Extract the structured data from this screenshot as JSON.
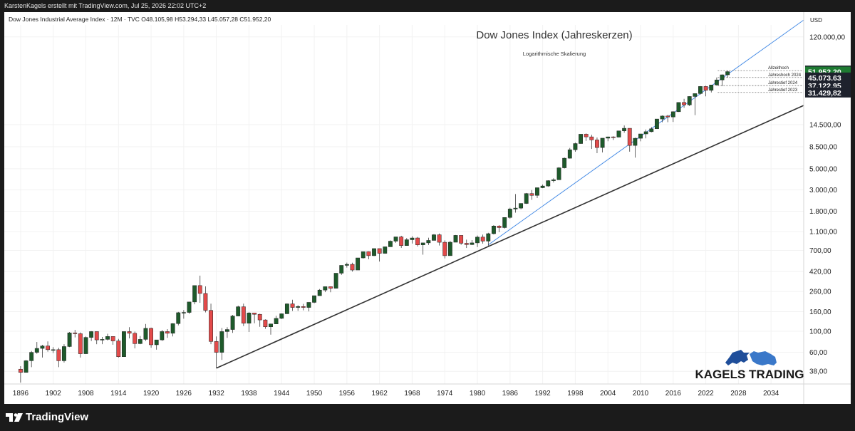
{
  "header": {
    "credit": "KarstenKagels erstellt mit TradingView.com, Jul 25, 2026 22:02 UTC+2"
  },
  "footer": {
    "brand": "TradingView"
  },
  "legend": {
    "symbol_line": "Dow Jones Industrial Average Index · 12M · TVC  O48.105,98  H53.294,33  L45.057,28  C51.952,20"
  },
  "watermark": {
    "brand": "KAGELS TRADING"
  },
  "colors": {
    "up": "#1e5a2b",
    "down": "#e34a4a",
    "blue_line": "#4a8ee6",
    "black_line": "#333333",
    "price_tag_dark": "#1e222d",
    "price_tag_green": "#1e7a32"
  },
  "chart_data": {
    "type": "candlestick",
    "title": "Dow Jones Index (Jahreskerzen)",
    "subtitle": "Logarithmische Skalierung",
    "currency": "USD",
    "scale": "log",
    "ylim": [
      28,
      160000
    ],
    "xlim": [
      1893,
      2040
    ],
    "x_ticks": [
      "1896",
      "1902",
      "1908",
      "1914",
      "1920",
      "1926",
      "1932",
      "1938",
      "1944",
      "1950",
      "1956",
      "1962",
      "1968",
      "1974",
      "1980",
      "1986",
      "1992",
      "1998",
      "2004",
      "2010",
      "2016",
      "2022",
      "2028",
      "2034"
    ],
    "y_ticks": [
      {
        "value": 120000,
        "label": "120.000,00"
      },
      {
        "value": 14500,
        "label": "14.500,00"
      },
      {
        "value": 8500,
        "label": "8.500,00"
      },
      {
        "value": 5000,
        "label": "5.000,00"
      },
      {
        "value": 3000,
        "label": "3.000,00"
      },
      {
        "value": 1800,
        "label": "1.800,00"
      },
      {
        "value": 1100,
        "label": "1.100,00"
      },
      {
        "value": 700,
        "label": "700,00"
      },
      {
        "value": 420,
        "label": "420,00"
      },
      {
        "value": 260,
        "label": "260,00"
      },
      {
        "value": 160,
        "label": "160,00"
      },
      {
        "value": 100,
        "label": "100,00"
      },
      {
        "value": 60,
        "label": "60,00"
      },
      {
        "value": 38,
        "label": "38,00"
      }
    ],
    "price_tags": [
      {
        "value": 53294.33,
        "label": "53.294,33",
        "style": "dark"
      },
      {
        "value": 51952.2,
        "label": "51.952,20",
        "style": "green"
      },
      {
        "value": 45073.63,
        "label": "45.073,63",
        "style": "dark"
      },
      {
        "value": 37122.95,
        "label": "37.122,95",
        "style": "dark"
      },
      {
        "value": 31429.82,
        "label": "31.429,82",
        "style": "dark"
      }
    ],
    "level_labels": [
      {
        "value": 53294.33,
        "label": "Allzeithoch"
      },
      {
        "value": 45073.63,
        "label": "Jahreshoch 2024"
      },
      {
        "value": 37122.95,
        "label": "Jahrestief 2024"
      },
      {
        "value": 31429.82,
        "label": "Jahrestief 2023"
      }
    ],
    "trendlines": [
      {
        "name": "black",
        "color": "#333333",
        "points": [
          [
            1932,
            41
          ],
          [
            2040,
            23000
          ]
        ]
      },
      {
        "name": "blue",
        "color": "#4a8ee6",
        "points": [
          [
            1982,
            800
          ],
          [
            2040,
            180000
          ]
        ]
      }
    ],
    "candles": [
      [
        1896,
        40,
        37,
        43,
        29
      ],
      [
        1897,
        37,
        49,
        50,
        38
      ],
      [
        1898,
        49,
        60,
        62,
        42
      ],
      [
        1899,
        60,
        66,
        77,
        58
      ],
      [
        1900,
        66,
        70,
        72,
        53
      ],
      [
        1901,
        70,
        64,
        78,
        61
      ],
      [
        1902,
        64,
        64,
        68,
        59
      ],
      [
        1903,
        64,
        49,
        67,
        42
      ],
      [
        1904,
        49,
        69,
        73,
        47
      ],
      [
        1905,
        69,
        96,
        98,
        68
      ],
      [
        1906,
        96,
        94,
        103,
        86
      ],
      [
        1907,
        94,
        58,
        97,
        53
      ],
      [
        1908,
        58,
        86,
        88,
        58
      ],
      [
        1909,
        86,
        99,
        100,
        79
      ],
      [
        1910,
        99,
        81,
        99,
        73
      ],
      [
        1911,
        81,
        82,
        87,
        73
      ],
      [
        1912,
        82,
        88,
        94,
        80
      ],
      [
        1913,
        88,
        79,
        88,
        72
      ],
      [
        1914,
        79,
        54,
        83,
        53
      ],
      [
        1915,
        54,
        99,
        99,
        54
      ],
      [
        1916,
        99,
        95,
        110,
        84
      ],
      [
        1917,
        95,
        74,
        99,
        66
      ],
      [
        1918,
        74,
        82,
        89,
        73
      ],
      [
        1919,
        82,
        107,
        119,
        79
      ],
      [
        1920,
        107,
        72,
        109,
        67
      ],
      [
        1921,
        72,
        81,
        81,
        64
      ],
      [
        1922,
        81,
        99,
        103,
        79
      ],
      [
        1923,
        99,
        95,
        105,
        85
      ],
      [
        1924,
        95,
        120,
        121,
        88
      ],
      [
        1925,
        120,
        156,
        159,
        115
      ],
      [
        1926,
        156,
        157,
        166,
        135
      ],
      [
        1927,
        157,
        202,
        202,
        152
      ],
      [
        1928,
        202,
        300,
        300,
        191
      ],
      [
        1929,
        300,
        248,
        381,
        198
      ],
      [
        1930,
        248,
        165,
        294,
        157
      ],
      [
        1931,
        165,
        78,
        194,
        73
      ],
      [
        1932,
        78,
        60,
        88,
        41
      ],
      [
        1933,
        60,
        99,
        108,
        50
      ],
      [
        1934,
        99,
        104,
        110,
        85
      ],
      [
        1935,
        104,
        144,
        148,
        96
      ],
      [
        1936,
        144,
        180,
        185,
        143
      ],
      [
        1937,
        180,
        121,
        194,
        113
      ],
      [
        1938,
        121,
        155,
        158,
        98
      ],
      [
        1939,
        155,
        150,
        155,
        121
      ],
      [
        1940,
        150,
        131,
        152,
        111
      ],
      [
        1941,
        131,
        111,
        133,
        106
      ],
      [
        1942,
        111,
        119,
        120,
        92
      ],
      [
        1943,
        119,
        136,
        145,
        119
      ],
      [
        1944,
        136,
        152,
        153,
        134
      ],
      [
        1945,
        152,
        193,
        195,
        151
      ],
      [
        1946,
        193,
        177,
        213,
        163
      ],
      [
        1947,
        177,
        181,
        187,
        163
      ],
      [
        1948,
        181,
        177,
        193,
        165
      ],
      [
        1949,
        177,
        200,
        200,
        161
      ],
      [
        1950,
        200,
        235,
        235,
        196
      ],
      [
        1951,
        235,
        269,
        276,
        238
      ],
      [
        1952,
        269,
        292,
        292,
        256
      ],
      [
        1953,
        292,
        281,
        294,
        255
      ],
      [
        1954,
        281,
        404,
        404,
        279
      ],
      [
        1955,
        404,
        488,
        488,
        388
      ],
      [
        1956,
        488,
        500,
        521,
        462
      ],
      [
        1957,
        500,
        436,
        520,
        420
      ],
      [
        1958,
        436,
        584,
        584,
        436
      ],
      [
        1959,
        584,
        679,
        679,
        574
      ],
      [
        1960,
        679,
        616,
        685,
        566
      ],
      [
        1961,
        616,
        731,
        734,
        610
      ],
      [
        1962,
        731,
        652,
        726,
        535
      ],
      [
        1963,
        652,
        763,
        767,
        646
      ],
      [
        1964,
        763,
        874,
        891,
        766
      ],
      [
        1965,
        874,
        969,
        969,
        840
      ],
      [
        1966,
        969,
        786,
        995,
        744
      ],
      [
        1967,
        786,
        905,
        943,
        786
      ],
      [
        1968,
        905,
        944,
        985,
        825
      ],
      [
        1969,
        944,
        800,
        968,
        769
      ],
      [
        1970,
        800,
        839,
        842,
        631
      ],
      [
        1971,
        839,
        890,
        950,
        798
      ],
      [
        1972,
        890,
        1020,
        1036,
        889
      ],
      [
        1973,
        1020,
        851,
        1051,
        788
      ],
      [
        1974,
        851,
        616,
        891,
        577
      ],
      [
        1975,
        616,
        852,
        881,
        632
      ],
      [
        1976,
        852,
        1005,
        1014,
        858
      ],
      [
        1977,
        1005,
        831,
        999,
        800
      ],
      [
        1978,
        831,
        805,
        907,
        742
      ],
      [
        1979,
        805,
        839,
        897,
        796
      ],
      [
        1980,
        839,
        964,
        1000,
        759
      ],
      [
        1981,
        964,
        875,
        1024,
        824
      ],
      [
        1982,
        875,
        1047,
        1070,
        776
      ],
      [
        1983,
        1047,
        1259,
        1287,
        1027
      ],
      [
        1984,
        1259,
        1212,
        1286,
        1086
      ],
      [
        1985,
        1212,
        1547,
        1553,
        1184
      ],
      [
        1986,
        1547,
        1896,
        1955,
        1502
      ],
      [
        1987,
        1896,
        1939,
        2722,
        1738
      ],
      [
        1988,
        1939,
        2169,
        2183,
        1879
      ],
      [
        1989,
        2169,
        2753,
        2791,
        2144
      ],
      [
        1990,
        2753,
        2634,
        2999,
        2365
      ],
      [
        1991,
        2634,
        3169,
        3169,
        2470
      ],
      [
        1992,
        3169,
        3301,
        3413,
        3136
      ],
      [
        1993,
        3301,
        3754,
        3794,
        3241
      ],
      [
        1994,
        3754,
        3834,
        3978,
        3593
      ],
      [
        1995,
        3834,
        5117,
        5216,
        3832
      ],
      [
        1996,
        5117,
        6448,
        6560,
        5032
      ],
      [
        1997,
        6448,
        7908,
        8259,
        6391
      ],
      [
        1998,
        7908,
        9181,
        9374,
        7539
      ],
      [
        1999,
        9181,
        11497,
        11497,
        9121
      ],
      [
        2000,
        11497,
        10787,
        11723,
        9796
      ],
      [
        2001,
        10787,
        10021,
        11338,
        8062
      ],
      [
        2002,
        10021,
        8342,
        10635,
        7286
      ],
      [
        2003,
        8342,
        10454,
        10454,
        7417
      ],
      [
        2004,
        10454,
        10783,
        10854,
        9708
      ],
      [
        2005,
        10783,
        10718,
        10940,
        10013
      ],
      [
        2006,
        10718,
        12463,
        12510,
        10661
      ],
      [
        2007,
        12463,
        13265,
        14198,
        11939
      ],
      [
        2008,
        13265,
        8776,
        13279,
        7552
      ],
      [
        2009,
        8776,
        10428,
        10580,
        6547
      ],
      [
        2010,
        10428,
        11578,
        11585,
        9686
      ],
      [
        2011,
        11578,
        12218,
        12876,
        10404
      ],
      [
        2012,
        12218,
        13104,
        13661,
        12036
      ],
      [
        2013,
        13104,
        16577,
        16588,
        13104
      ],
      [
        2014,
        16577,
        17823,
        18103,
        15340
      ],
      [
        2015,
        17823,
        17425,
        18351,
        15370
      ],
      [
        2016,
        17425,
        19763,
        19987,
        15450
      ],
      [
        2017,
        19763,
        24719,
        24876,
        19677
      ],
      [
        2018,
        24719,
        23327,
        26952,
        21713
      ],
      [
        2019,
        23327,
        28538,
        28701,
        22638
      ],
      [
        2020,
        28538,
        30606,
        30638,
        18213
      ],
      [
        2021,
        30606,
        36338,
        36679,
        29880
      ],
      [
        2022,
        36338,
        33147,
        36953,
        28660
      ],
      [
        2023,
        33147,
        37690,
        37790,
        31430
      ],
      [
        2024,
        37690,
        42544,
        45074,
        37123
      ],
      [
        2025,
        42544,
        48106,
        48500,
        36600
      ],
      [
        2026,
        48106,
        51952,
        53294,
        45057
      ]
    ]
  }
}
